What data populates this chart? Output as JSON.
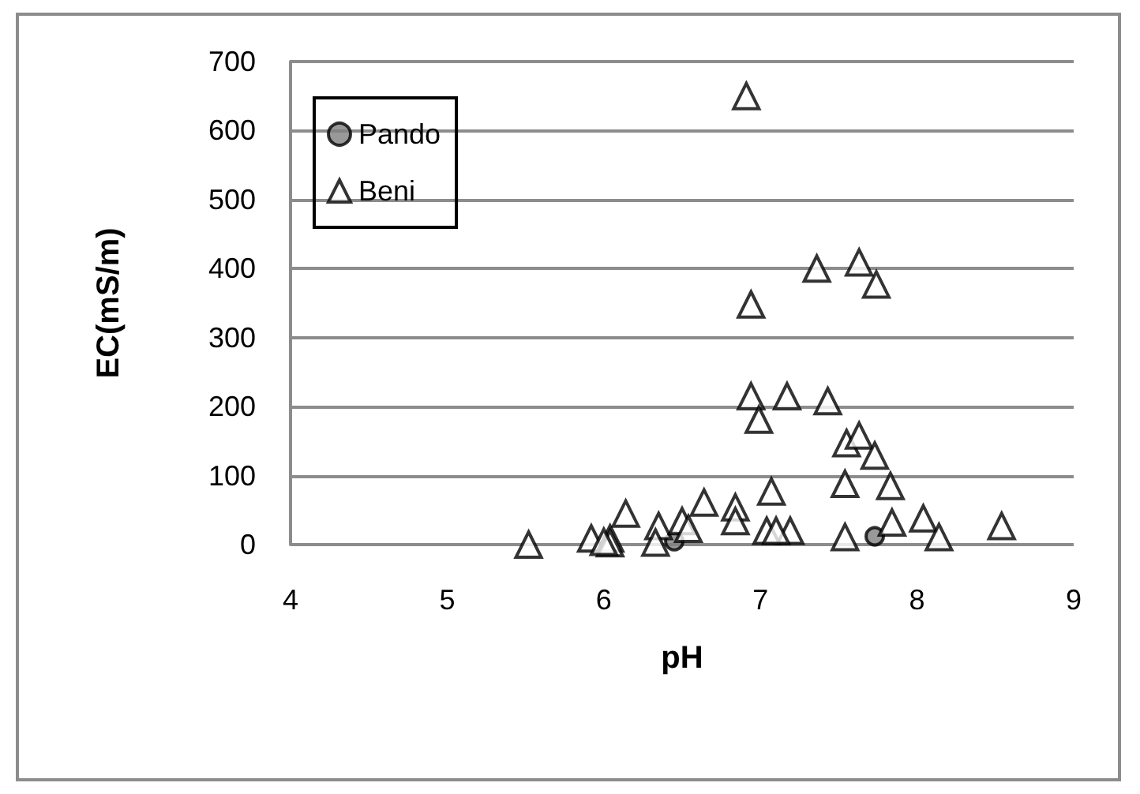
{
  "chart_data": {
    "type": "scatter",
    "xlabel": "pH",
    "ylabel": "EC(mS/m)",
    "xlim": [
      4,
      9
    ],
    "xticks": [
      4,
      5,
      6,
      7,
      8,
      9
    ],
    "ylim": [
      0,
      700
    ],
    "yticks": [
      0,
      100,
      200,
      300,
      400,
      500,
      600,
      700
    ],
    "grid": "y",
    "legend": "top left",
    "series": [
      {
        "name": "Pando",
        "color": "#808080",
        "marker": "circle",
        "x": [
          6.45,
          7.73
        ],
        "values": [
          5,
          12
        ]
      },
      {
        "name": "Beni",
        "color": "#ffffff",
        "marker": "triangle",
        "x": [
          6.91,
          6.94,
          7.36,
          7.63,
          7.74,
          6.94,
          7.17,
          7.43,
          6.99,
          7.55,
          7.63,
          7.73,
          7.54,
          7.83,
          7.07,
          6.64,
          6.84,
          6.84,
          6.14,
          7.84,
          8.04,
          8.54,
          8.14,
          7.54,
          7.19,
          7.04,
          7.1,
          5.52,
          5.92,
          6.04,
          6.04,
          6.0,
          6.35,
          6.33,
          6.5,
          6.54
        ],
        "values": [
          650,
          348,
          400,
          409,
          377,
          215,
          215,
          208,
          181,
          147,
          158,
          129,
          88,
          85,
          77,
          61,
          54,
          34,
          45,
          32,
          38,
          27,
          11,
          11,
          20,
          20,
          20,
          0,
          9,
          9,
          2,
          4,
          27,
          3,
          34,
          23
        ]
      }
    ]
  }
}
